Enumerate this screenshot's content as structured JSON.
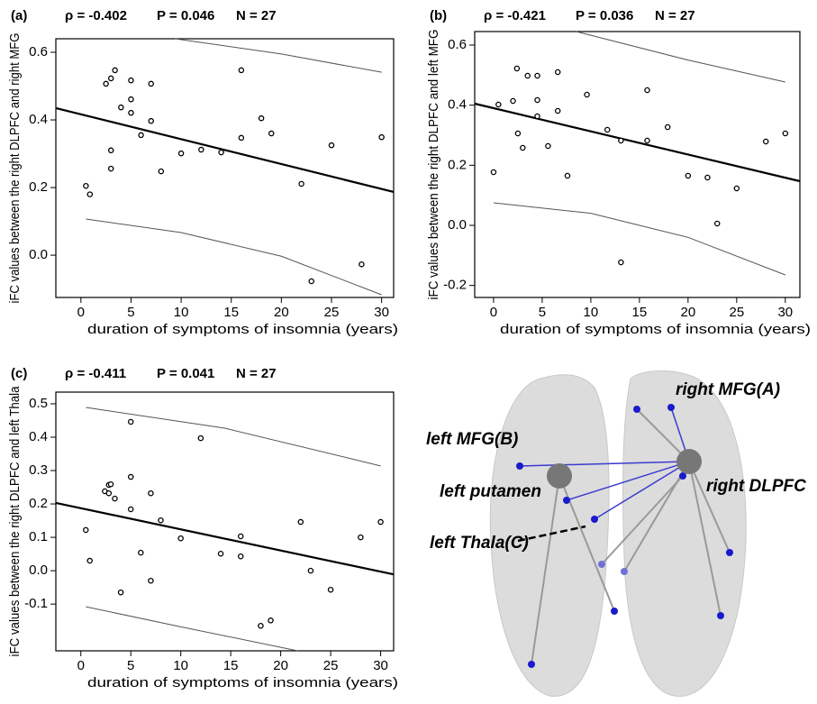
{
  "chart_data": [
    {
      "type": "scatter",
      "panel": "(a)",
      "rho": "ρ = -0.402",
      "p_value": "P = 0.046",
      "n": "N = 27",
      "xlabel": "duration of symptoms of insomnia (years)",
      "ylabel": "iFC values between the right DLPFC and right MFG",
      "x": [
        0.5,
        0.9,
        2.5,
        3,
        3.4,
        3,
        3,
        4,
        5,
        5,
        5,
        6,
        7,
        7,
        8,
        10,
        12,
        14,
        16,
        16,
        18,
        19,
        22,
        23,
        25,
        28,
        30
      ],
      "values": [
        0.205,
        0.18,
        0.507,
        0.523,
        0.547,
        0.31,
        0.256,
        0.437,
        0.517,
        0.461,
        0.421,
        0.355,
        0.507,
        0.397,
        0.248,
        0.301,
        0.312,
        0.304,
        0.547,
        0.347,
        0.405,
        0.36,
        0.211,
        -0.077,
        0.325,
        -0.027,
        0.349
      ],
      "color": "#000000",
      "xlim": [
        -2.5,
        31.2
      ],
      "ylim": [
        -0.125,
        0.64
      ],
      "xticks": [
        0,
        5,
        10,
        15,
        20,
        25,
        30
      ],
      "yticks": [
        0.6,
        0.4,
        0.2,
        {
          "value": 0,
          "label": "0.0"
        }
      ],
      "fit": {
        "x": [
          -2.5,
          31.2
        ],
        "y": [
          0.435,
          0.187
        ]
      },
      "band_upper": {
        "x": [
          9.4,
          20,
          30
        ],
        "y": [
          0.64,
          0.595,
          0.541
        ]
      },
      "band_lower": {
        "x": [
          0.5,
          10,
          20,
          30
        ],
        "y": [
          0.107,
          0.067,
          -0.003,
          -0.117
        ]
      }
    },
    {
      "type": "scatter",
      "panel": "(b)",
      "rho": "ρ = -0.421",
      "p_value": "P = 0.036",
      "n": "N = 27",
      "xlabel": "duration of symptoms of insomnia (years)",
      "ylabel": "iFC values between the right DLPFC and left MFG",
      "x": [
        0,
        0.5,
        2,
        2.4,
        2.5,
        3,
        3.5,
        4.5,
        4.5,
        4.5,
        5.6,
        6.6,
        6.6,
        7.6,
        9.6,
        11.7,
        13.1,
        13.1,
        15.8,
        15.8,
        17.9,
        20,
        22,
        23,
        25,
        28,
        30
      ],
      "values": [
        0.177,
        0.402,
        0.414,
        0.522,
        0.306,
        0.258,
        0.498,
        0.498,
        0.417,
        0.363,
        0.264,
        0.51,
        0.381,
        0.165,
        0.435,
        0.318,
        -0.123,
        0.282,
        0.45,
        0.282,
        0.327,
        0.165,
        0.159,
        0.006,
        0.123,
        0.279,
        0.306
      ],
      "color": "#000000",
      "xlim": [
        -1.94,
        31.5
      ],
      "ylim": [
        -0.24,
        0.645
      ],
      "xticks": [
        0,
        5,
        10,
        15,
        20,
        25,
        30
      ],
      "yticks": [
        0.6,
        0.4,
        0.2,
        {
          "value": 0,
          "label": "0.0"
        },
        -0.2
      ],
      "fit": {
        "x": [
          -1.94,
          31.5
        ],
        "y": [
          0.405,
          0.147
        ]
      },
      "band_upper": {
        "x": [
          8.5,
          20,
          30
        ],
        "y": [
          0.645,
          0.55,
          0.477
        ]
      },
      "band_lower": {
        "x": [
          0,
          10,
          20,
          30
        ],
        "y": [
          0.075,
          0.04,
          -0.04,
          -0.165
        ]
      }
    },
    {
      "type": "scatter",
      "panel": "(c)",
      "rho": "ρ = -0.411",
      "p_value": "P = 0.041",
      "n": "N = 27",
      "xlabel": "duration of symptoms of insomnia (years)",
      "ylabel": "iFC values between the right DLPFC and left Thala",
      "x": [
        0.5,
        0.9,
        2.4,
        2.8,
        2.8,
        3,
        3.4,
        4,
        5,
        5,
        5,
        6,
        7,
        7,
        8,
        10,
        12,
        14,
        16,
        16,
        18,
        19,
        22,
        23,
        25,
        28,
        30
      ],
      "values": [
        0.122,
        0.03,
        0.238,
        0.257,
        0.232,
        0.259,
        0.216,
        -0.065,
        0.446,
        0.281,
        0.184,
        0.054,
        0.232,
        -0.03,
        0.151,
        0.097,
        0.397,
        0.051,
        0.103,
        0.043,
        -0.165,
        -0.149,
        0.146,
        0,
        -0.057,
        0.1,
        0.146
      ],
      "color": "#000000",
      "xlim": [
        -2.5,
        31.3
      ],
      "ylim": [
        -0.24,
        0.535
      ],
      "xticks": [
        0,
        5,
        10,
        15,
        20,
        25,
        30
      ],
      "yticks": [
        0.5,
        0.4,
        0.3,
        0.2,
        0.1,
        {
          "value": 0,
          "label": "0.0"
        },
        -0.1
      ],
      "fit": {
        "x": [
          -2.5,
          31.3
        ],
        "y": [
          0.203,
          -0.011
        ]
      },
      "band_upper": {
        "x": [
          0.5,
          14.4,
          30
        ],
        "y": [
          0.489,
          0.427,
          0.314
        ]
      },
      "band_lower": {
        "x": [
          0.5,
          10,
          21.7
        ],
        "y": [
          -0.108,
          -0.168,
          -0.24
        ]
      }
    }
  ],
  "brain_labels": {
    "right_mfg": "right MFG(A)",
    "left_mfg": "left MFG(B)",
    "left_putamen": "left putamen",
    "right_dlpfc": "right DLPFC",
    "left_thala": "left Thala(C)"
  }
}
